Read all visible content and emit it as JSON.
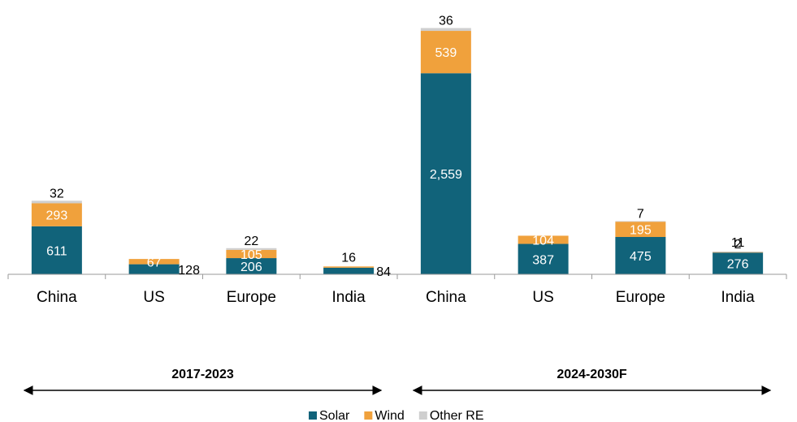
{
  "chart_data": {
    "type": "bar",
    "stacked": true,
    "categories": [
      "China",
      "US",
      "Europe",
      "India",
      "China",
      "US",
      "Europe",
      "India"
    ],
    "series": [
      {
        "name": "Solar",
        "color": "#11637a",
        "values": [
          611,
          128,
          206,
          84,
          2559,
          387,
          475,
          276
        ],
        "labels": [
          "611",
          "128",
          "206",
          "84",
          "2,559",
          "387",
          "475",
          "276"
        ]
      },
      {
        "name": "Wind",
        "color": "#f0a13c",
        "values": [
          293,
          67,
          105,
          16,
          539,
          104,
          195,
          11
        ],
        "labels": [
          "293",
          "67",
          "105",
          "16",
          "539",
          "104",
          "195",
          "11"
        ]
      },
      {
        "name": "Other RE",
        "color": "#cfcfcf",
        "values": [
          32,
          0,
          22,
          0,
          36,
          0,
          7,
          2
        ],
        "labels": [
          "32",
          "",
          "22",
          "",
          "36",
          "",
          "7",
          "2"
        ]
      }
    ],
    "periods": [
      {
        "label": "2017-2023",
        "from": 0,
        "to": 3
      },
      {
        "label": "2024-2030F",
        "from": 4,
        "to": 7
      }
    ],
    "ylim": [
      0,
      3150
    ],
    "legend_position": "bottom-center",
    "grid": false
  }
}
